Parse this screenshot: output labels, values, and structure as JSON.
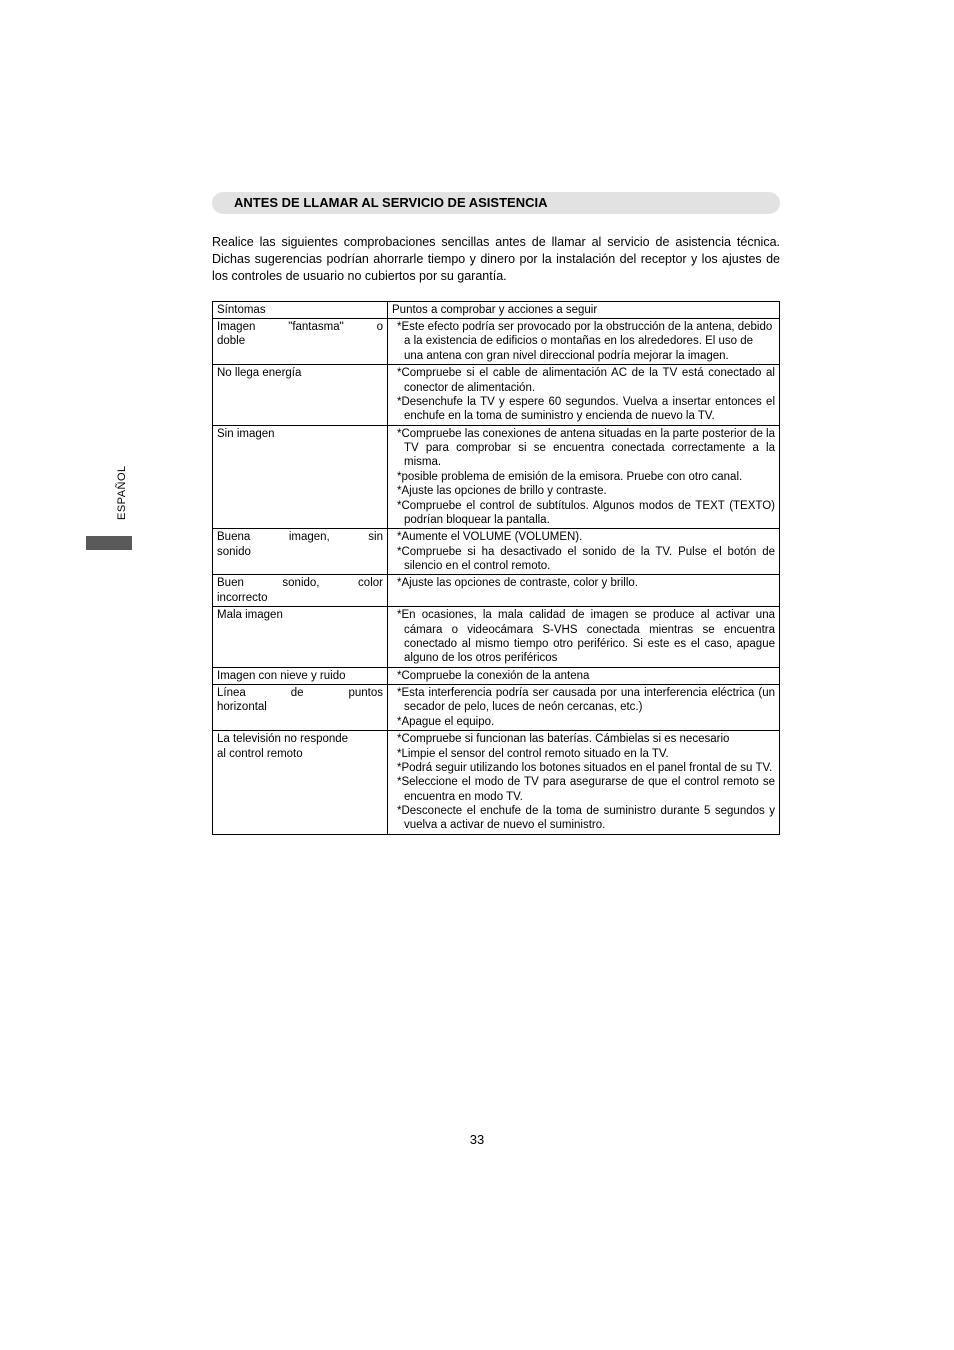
{
  "side": {
    "label": "ESPAÑOL"
  },
  "heading": "ANTES DE LLAMAR AL SERVICIO DE ASISTENCIA",
  "intro": "Realice las siguientes comprobaciones sencillas antes de llamar al servicio de asistencia técnica. Dichas sugerencias podrían ahorrarle tiempo y dinero por la instalación del receptor y los ajustes de los controles de usuario no cubiertos por su garantía.",
  "table": {
    "header": {
      "c1": "Síntomas",
      "c2": "Puntos a comprobar y acciones a seguir"
    },
    "rows": [
      {
        "c1_a": "Imagen",
        "c1_b": "\"fantasma\"",
        "c1_c": "o",
        "c1_line2": "doble",
        "c2": "*Este efecto podría ser provocado por la obstrucción de la antena, debido a la existencia de edificios o montañas en los alrededores. El uso de una antena con gran nivel direccional podría mejorar la imagen."
      },
      {
        "c1": "No llega energía",
        "c2a": "*Compruebe si el cable de alimentación AC de la TV está conectado al conector de alimentación.",
        "c2b": "*Desenchufe la TV y espere 60 segundos. Vuelva a insertar entonces el enchufe en la toma de suministro y encienda de nuevo la TV."
      },
      {
        "c1": "Sin imagen",
        "c2a": "*Compruebe las conexiones de antena situadas en la parte posterior de la TV para comprobar si se encuentra conectada correctamente a la misma.",
        "c2b": "*posible problema de emisión de la emisora. Pruebe con otro canal.",
        "c2c": "*Ajuste las opciones de brillo y contraste.",
        "c2d": "*Compruebe el control de subtítulos. Algunos modos de TEXT (TEXTO) podrían bloquear la pantalla."
      },
      {
        "c1_a": "Buena",
        "c1_b": "imagen,",
        "c1_c": "sin",
        "c1_line2": "sonido",
        "c2a": "*Aumente el VOLUME (VOLUMEN).",
        "c2b": "*Compruebe si ha desactivado el sonido de la TV. Pulse el botón de silencio en el control remoto."
      },
      {
        "c1_a": "Buen",
        "c1_b": "sonido,",
        "c1_c": "color",
        "c1_line2": "incorrecto",
        "c2": "*Ajuste las opciones de contraste, color y brillo."
      },
      {
        "c1": "Mala imagen",
        "c2": "*En ocasiones, la mala calidad de imagen se produce al activar una cámara o videocámara S-VHS conectada mientras se encuentra conectado al mismo tiempo otro periférico. Si este es el caso, apague alguno de los otros periféricos"
      },
      {
        "c1": "Imagen con nieve y ruido",
        "c2": "*Compruebe la conexión de la antena"
      },
      {
        "c1_a": "Línea",
        "c1_b": "de",
        "c1_c": "puntos",
        "c1_line2": "horizontal",
        "c2a": "*Esta interferencia podría ser causada por una interferencia eléctrica (un secador de pelo, luces de neón cercanas, etc.)",
        "c2b": "*Apague el equipo."
      },
      {
        "c1a": "La televisión no responde",
        "c1b": "al control remoto",
        "c2a": "*Compruebe si funcionan las baterías. Cámbielas si es necesario",
        "c2b": "*Limpie el sensor del control remoto situado en la TV.",
        "c2c": "*Podrá seguir utilizando los botones situados en el panel frontal de su TV.",
        "c2d": "*Seleccione el modo de TV para asegurarse de que el control remoto se encuentra en modo TV.",
        "c2e": "*Desconecte el enchufe de la toma de suministro durante 5 segundos y vuelva a activar de nuevo el suministro."
      }
    ]
  },
  "pageNumber": "33"
}
